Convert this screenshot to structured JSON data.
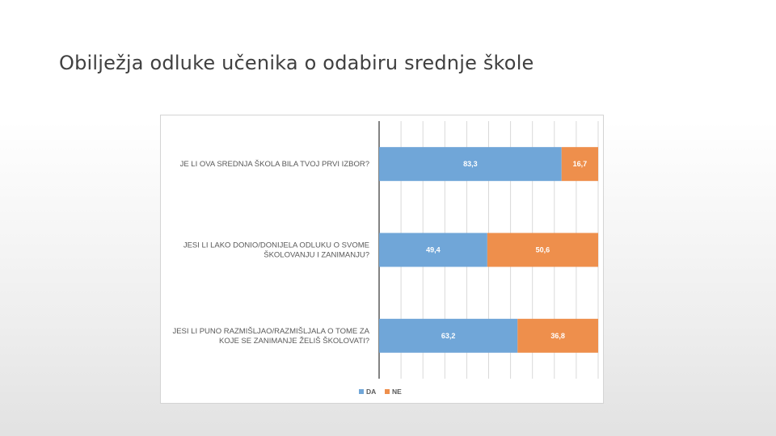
{
  "slide": {
    "title": "Obilježja odluke učenika o odabiru srednje škole"
  },
  "chart_data": {
    "type": "bar",
    "orientation": "horizontal",
    "stacked": true,
    "categories": [
      [
        "JE LI OVA SREDNJA ŠKOLA BILA TVOJ PRVI IZBOR?"
      ],
      [
        "JESI LI LAKO DONIO/DONIJELA ODLUKU O SVOME",
        "ŠKOLOVANJU I ZANIMANJU?"
      ],
      [
        "JESI LI PUNO RAZMIŠLJAO/RAZMIŠLJALA  O TOME ZA",
        "KOJE SE ZANIMANJE ŽELIŠ ŠKOLOVATI?"
      ]
    ],
    "series": [
      {
        "name": "DA",
        "color": "#70a6d8",
        "values": [
          83.3,
          49.4,
          63.2
        ],
        "labels": [
          "83,3",
          "49,4",
          "63,2"
        ]
      },
      {
        "name": "NE",
        "color": "#ee8f4c",
        "values": [
          16.7,
          50.6,
          36.8
        ],
        "labels": [
          "16,7",
          "50,6",
          "36,8"
        ]
      }
    ],
    "xlim": [
      0,
      100
    ],
    "grid": true,
    "legend": "bottom"
  }
}
